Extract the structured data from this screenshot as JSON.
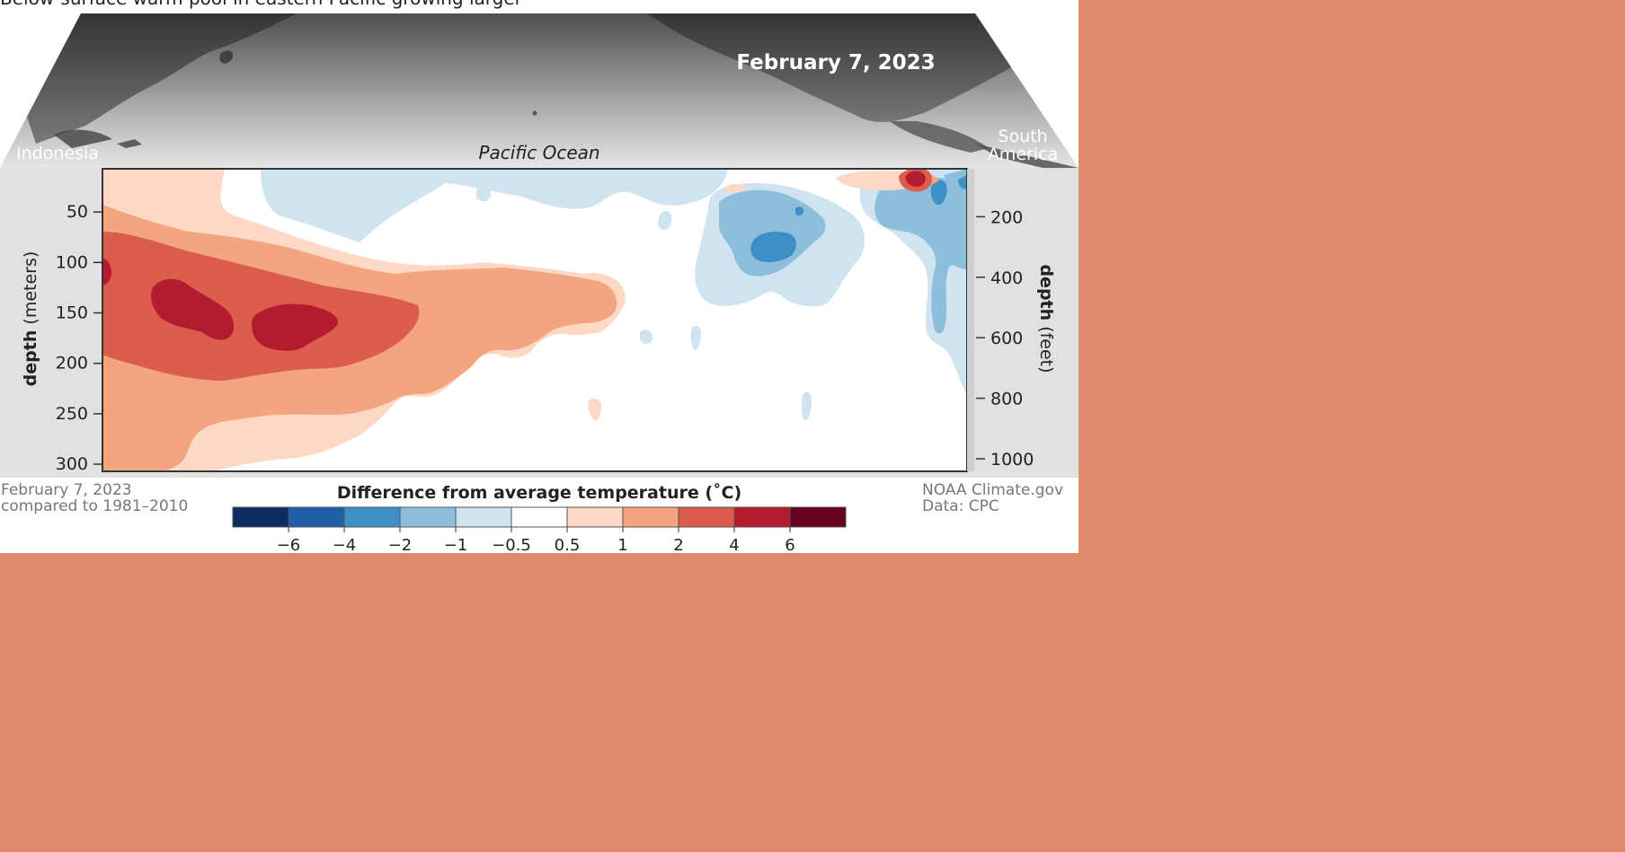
{
  "page": {
    "background_color": "#e0886a"
  },
  "figure": {
    "title": "Below-surface warm pool in eastern Pacific growing larger",
    "map_date": "February 7, 2023",
    "ocean_label": "Pacific Ocean",
    "left_label": "Indonesia",
    "right_label_line1": "South",
    "right_label_line2": "America",
    "footer_left_line1": "February 7, 2023",
    "footer_left_line2": "compared to 1981–2010",
    "footer_right_line1": "NOAA Climate.gov",
    "footer_right_line2": "Data: CPC"
  },
  "chart_data": {
    "type": "heatmap",
    "title": "Difference from average temperature (˚C)",
    "xlabel": "",
    "ylabel_left": "depth (meters)",
    "ylabel_left_word": "depth",
    "ylabel_left_unit": "(meters)",
    "ylabel_right": "depth (feet)",
    "ylabel_right_word": "depth",
    "ylabel_right_unit": "(feet)",
    "y_ticks_meters": [
      "50",
      "100",
      "150",
      "200",
      "250",
      "300"
    ],
    "y_tick_values_meters": [
      50,
      100,
      150,
      200,
      250,
      300
    ],
    "ylim_meters": [
      0,
      300
    ],
    "y_ticks_feet": [
      "200",
      "400",
      "600",
      "800",
      "1000"
    ],
    "y_tick_values_feet": [
      200,
      400,
      600,
      800,
      1000
    ],
    "ylim_feet": [
      0,
      1000
    ],
    "legend": {
      "labels": [
        "−6",
        "−4",
        "−2",
        "−1",
        "−0.5",
        "0.5",
        "1",
        "2",
        "4",
        "6"
      ],
      "colors": [
        "#0a2c5e",
        "#1f5fa8",
        "#3d8fc6",
        "#8dbfdd",
        "#cfe3f0",
        "#ffffff",
        "#fdd8c4",
        "#f3a57f",
        "#dc5d4b",
        "#b31b2e",
        "#67001f"
      ]
    }
  }
}
